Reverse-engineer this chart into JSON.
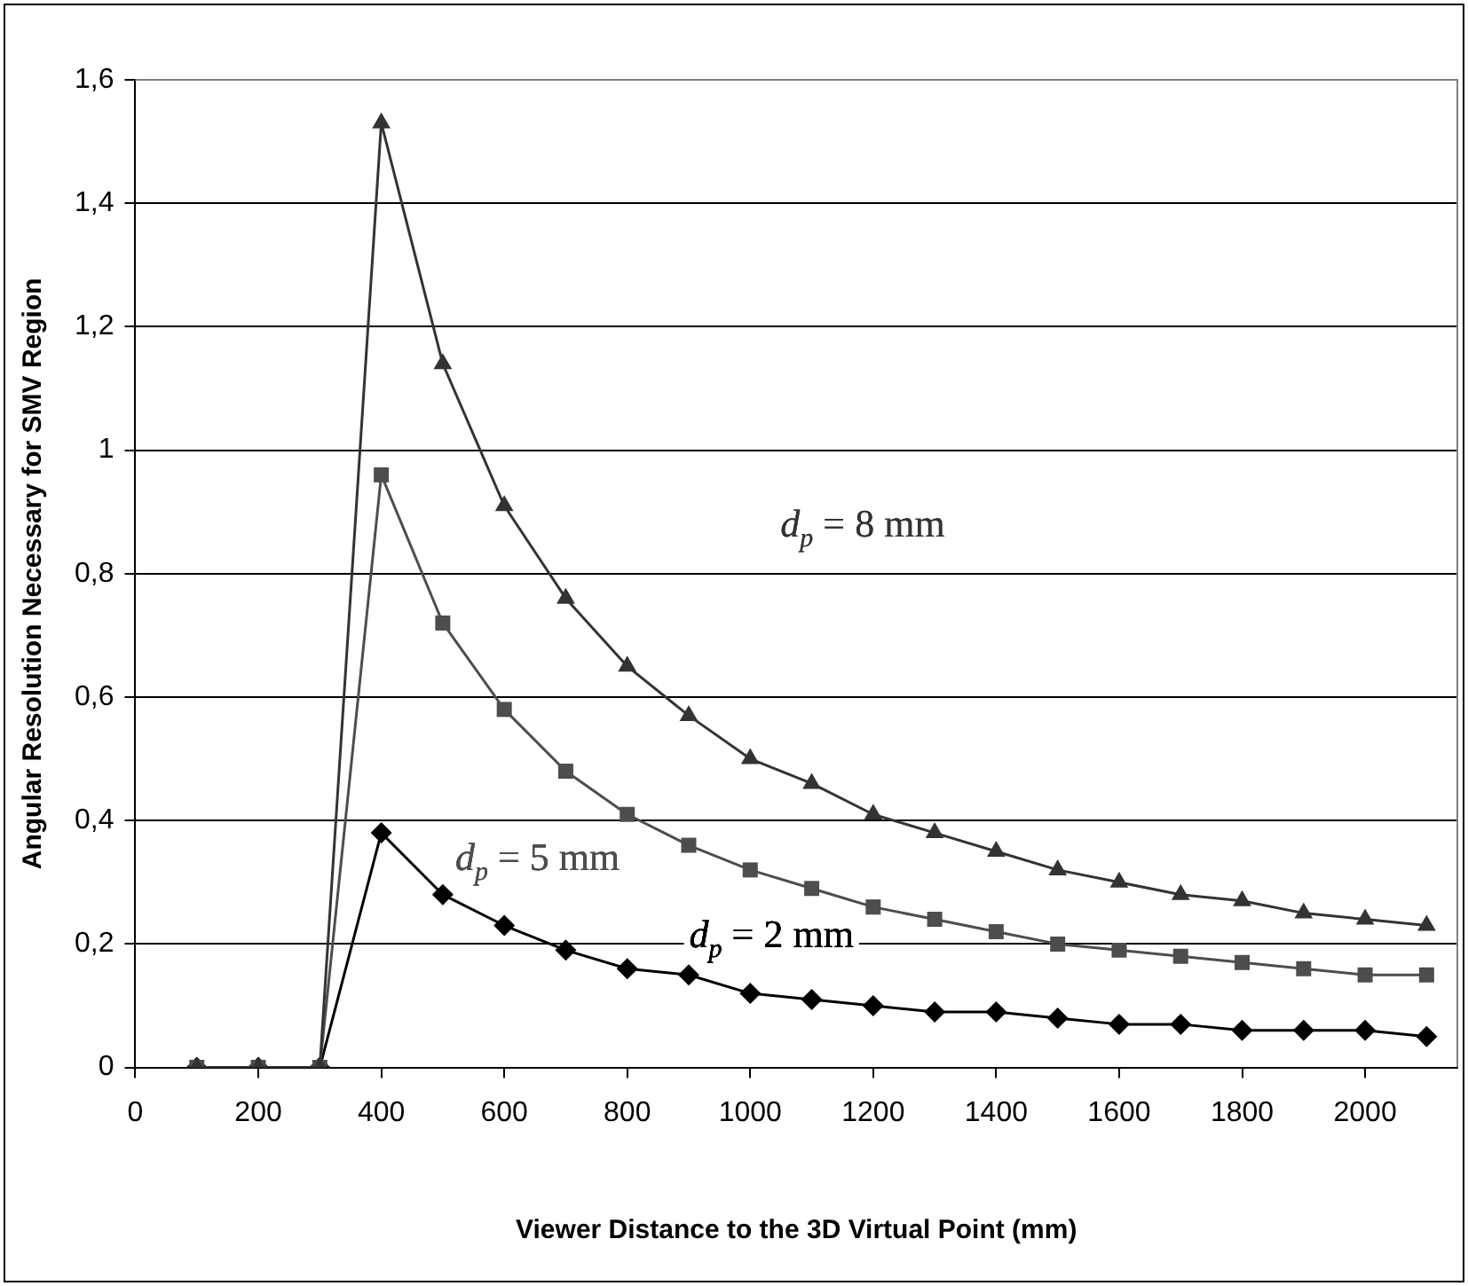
{
  "chart_data": {
    "type": "line",
    "xlabel": "Viewer Distance to the 3D Virtual Point (mm)",
    "ylabel": "Angular Resolution Necessary for SMV Region",
    "x": [
      100,
      200,
      300,
      400,
      500,
      600,
      700,
      800,
      900,
      1000,
      1100,
      1200,
      1300,
      1400,
      1500,
      1600,
      1700,
      1800,
      1900,
      2000,
      2100
    ],
    "series": [
      {
        "name": "d$_{p}$ = 8 mm",
        "color": "#333333",
        "marker": "triangle",
        "values": [
          0,
          0,
          0,
          1.53,
          1.14,
          0.91,
          0.76,
          0.65,
          0.57,
          0.5,
          0.46,
          0.41,
          0.38,
          0.35,
          0.32,
          0.3,
          0.28,
          0.27,
          0.25,
          0.24,
          0.23
        ]
      },
      {
        "name": "d$_{p}$ = 5 mm",
        "color": "#4d4d4d",
        "marker": "square",
        "values": [
          0,
          0,
          0,
          0.96,
          0.72,
          0.58,
          0.48,
          0.41,
          0.36,
          0.32,
          0.29,
          0.26,
          0.24,
          0.22,
          0.2,
          0.19,
          0.18,
          0.17,
          0.16,
          0.15,
          0.15
        ]
      },
      {
        "name": "d$_{p}$ = 2 mm",
        "color": "#000000",
        "marker": "diamond",
        "values": [
          0,
          0,
          0,
          0.38,
          0.28,
          0.23,
          0.19,
          0.16,
          0.15,
          0.12,
          0.11,
          0.1,
          0.09,
          0.09,
          0.08,
          0.07,
          0.07,
          0.06,
          0.06,
          0.06,
          0.05
        ]
      }
    ],
    "xlim": [
      0,
      2150
    ],
    "xticks": [
      0,
      200,
      400,
      600,
      800,
      1000,
      1200,
      1400,
      1600,
      1800,
      2000
    ],
    "ylim": [
      0,
      1.6
    ],
    "yticks": [
      0,
      {
        "value": 0.2,
        "label": "0,2"
      },
      {
        "value": 0.4,
        "label": "0,4"
      },
      {
        "value": 0.6,
        "label": "0,6"
      },
      {
        "value": 0.8,
        "label": "0,8"
      },
      1,
      {
        "value": 1.2,
        "label": "1,2"
      },
      {
        "value": 1.4,
        "label": "1,4"
      },
      {
        "value": 1.6,
        "label": "1,6"
      }
    ],
    "grid": "y",
    "legend": false,
    "line_style": "solid"
  }
}
